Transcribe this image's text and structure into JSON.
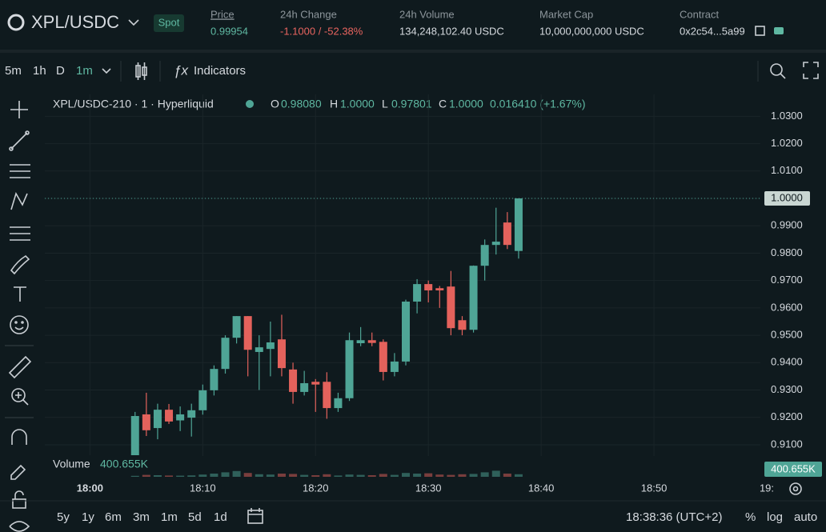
{
  "header": {
    "pair": "XPL/USDC",
    "market": "Spot",
    "stats": [
      {
        "label": "Price",
        "value": "0.99954"
      },
      {
        "label": "24h Change",
        "value": "-1.1000 / -52.38%"
      },
      {
        "label": "24h Volume",
        "value": "134,248,102.40 USDC"
      },
      {
        "label": "Market Cap",
        "value": "10,000,000,000 USDC"
      },
      {
        "label": "Contract",
        "value": "0x2c54...5a99"
      }
    ]
  },
  "toolbar": {
    "intervals": [
      "5m",
      "1h",
      "D",
      "1m"
    ],
    "indicators": "Indicators"
  },
  "legend": {
    "symbol": "XPL/USDC-210 · 1 · Hyperliquid",
    "o_label": "O",
    "o": "0.98080",
    "h_label": "H",
    "h": "1.0000",
    "l_label": "L",
    "l": "0.97801",
    "c_label": "C",
    "c": "1.0000",
    "change": "0.016410 (+1.67%)"
  },
  "chart_data": {
    "type": "candlestick",
    "x": [
      "18:04",
      "18:05",
      "18:06",
      "18:07",
      "18:08",
      "18:09",
      "18:10",
      "18:11",
      "18:12",
      "18:13",
      "18:14",
      "18:15",
      "18:16",
      "18:17",
      "18:18",
      "18:19",
      "18:20",
      "18:21",
      "18:22",
      "18:23",
      "18:24",
      "18:25",
      "18:26",
      "18:27",
      "18:28",
      "18:29",
      "18:30",
      "18:31",
      "18:32",
      "18:33",
      "18:34",
      "18:35",
      "18:36",
      "18:37",
      "18:38"
    ],
    "open": [
      0.905,
      0.9211,
      0.9161,
      0.9228,
      0.9189,
      0.9199,
      0.9226,
      0.9299,
      0.9377,
      0.9491,
      0.957,
      0.9439,
      0.945,
      0.9485,
      0.9375,
      0.9293,
      0.933,
      0.933,
      0.9234,
      0.927,
      0.9471,
      0.9482,
      0.9476,
      0.9366,
      0.9404,
      0.9623,
      0.9687,
      0.9672,
      0.9678,
      0.9555,
      0.952,
      0.9754,
      0.983,
      0.9912,
      0.9808
    ],
    "high": [
      0.922,
      0.929,
      0.925,
      0.9249,
      0.924,
      0.925,
      0.932,
      0.939,
      0.95,
      0.957,
      0.957,
      0.95,
      0.955,
      0.9575,
      0.94,
      0.937,
      0.934,
      0.9365,
      0.929,
      0.951,
      0.953,
      0.951,
      0.9485,
      0.9435,
      0.963,
      0.9705,
      0.97,
      0.968,
      0.9735,
      0.957,
      0.9755,
      0.985,
      0.9966,
      0.995,
      1.0
    ],
    "low": [
      0.903,
      0.9132,
      0.912,
      0.9176,
      0.915,
      0.913,
      0.921,
      0.928,
      0.936,
      0.947,
      0.935,
      0.93,
      0.935,
      0.935,
      0.925,
      0.928,
      0.922,
      0.9195,
      0.922,
      0.926,
      0.946,
      0.946,
      0.9335,
      0.935,
      0.939,
      0.958,
      0.962,
      0.96,
      0.95,
      0.95,
      0.951,
      0.97,
      0.9795,
      0.9815,
      0.97801
    ],
    "close": [
      0.9205,
      0.9153,
      0.9228,
      0.9185,
      0.9211,
      0.9226,
      0.9299,
      0.9377,
      0.9491,
      0.957,
      0.9447,
      0.9456,
      0.9474,
      0.938,
      0.9293,
      0.9325,
      0.932,
      0.9234,
      0.927,
      0.9482,
      0.9482,
      0.9472,
      0.9366,
      0.9404,
      0.9623,
      0.9687,
      0.9664,
      0.9664,
      0.9526,
      0.952,
      0.9754,
      0.983,
      0.9842,
      0.983,
      1.0
    ],
    "up_color": "#4fa596",
    "down_color": "#e4625c",
    "xlim": [
      "17:56",
      "19:00"
    ],
    "xticks": [
      "18:00",
      "18:10",
      "18:20",
      "18:30",
      "18:40",
      "18:50",
      {
        "value": "19:00",
        "label": "19:"
      }
    ],
    "ylim": [
      0.898,
      1.038
    ],
    "yticks": [
      {
        "value": 0.91,
        "label": "0.9100"
      },
      {
        "value": 0.92,
        "label": "0.9200"
      },
      {
        "value": 0.93,
        "label": "0.9300"
      },
      {
        "value": 0.94,
        "label": "0.9400"
      },
      {
        "value": 0.95,
        "label": "0.9500"
      },
      {
        "value": 0.96,
        "label": "0.9600"
      },
      {
        "value": 0.97,
        "label": "0.9700"
      },
      {
        "value": 0.98,
        "label": "0.9800"
      },
      {
        "value": 0.99,
        "label": "0.9900"
      },
      {
        "value": 1.0,
        "label": "1.0000"
      },
      {
        "value": 1.01,
        "label": "1.0100"
      },
      {
        "value": 1.02,
        "label": "1.0200"
      },
      {
        "value": 1.03,
        "label": "1.0300"
      }
    ],
    "last_price": {
      "value": 1.0,
      "label": "1.0000"
    },
    "volume": {
      "label": "Volume",
      "values": [
        150000,
        300000,
        250000,
        200000,
        180000,
        220000,
        350000,
        500000,
        700000,
        900000,
        600000,
        400000,
        350000,
        500000,
        450000,
        300000,
        250000,
        400000,
        200000,
        350000,
        300000,
        250000,
        450000,
        300000,
        600000,
        500000,
        550000,
        350000,
        300000,
        400000,
        450000,
        700000,
        950000,
        500000,
        400655
      ],
      "value_label": "400.655K",
      "ylim": [
        0,
        5000000
      ]
    }
  },
  "footer": {
    "ranges": [
      "5y",
      "1y",
      "6m",
      "3m",
      "1m",
      "5d",
      "1d"
    ],
    "time": "18:38:36 (UTC+2)",
    "options": [
      "%",
      "log",
      "auto"
    ]
  }
}
